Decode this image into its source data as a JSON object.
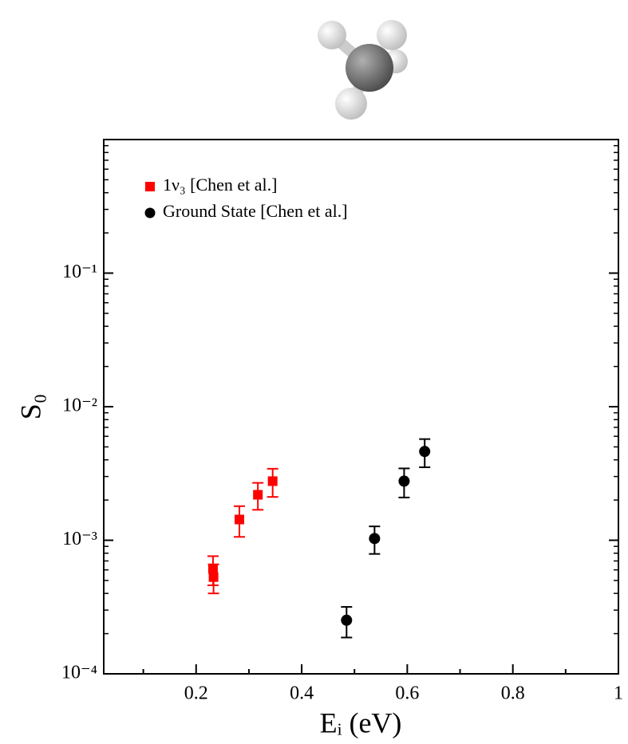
{
  "chart_data": {
    "type": "scatter",
    "x_label": "Eᵢ (eV)",
    "y_label": "S₀",
    "xlim": [
      0.025,
      1
    ],
    "xticks": [
      0.2,
      0.4,
      0.6,
      0.8,
      1
    ],
    "ylim": [
      0.0001,
      1
    ],
    "yticks": [
      {
        "value": 0.0001,
        "label": "10⁻⁴"
      },
      {
        "value": 0.001,
        "label": "10⁻³"
      },
      {
        "value": 0.01,
        "label": "10⁻²"
      },
      {
        "value": 0.1,
        "label": "10⁻¹"
      }
    ],
    "log_y": true,
    "legend_position": "upper left",
    "series": [
      {
        "name": "1ν₃ [Chen et al.]",
        "color": "#ff0000",
        "marker": "square",
        "x": [
          0.232,
          0.233,
          0.282,
          0.317,
          0.345
        ],
        "values": [
          0.00061,
          0.00053,
          0.00143,
          0.00219,
          0.00277
        ],
        "errors": [
          0.00015,
          0.00013,
          0.00037,
          0.0005,
          0.00066
        ]
      },
      {
        "name": "Ground State [Chen et al.]",
        "color": "#000000",
        "marker": "circle",
        "x": [
          0.485,
          0.538,
          0.594,
          0.633
        ],
        "values": [
          0.000252,
          0.00103,
          0.00277,
          0.00462
        ],
        "errors": [
          6.5e-05,
          0.00024,
          0.00068,
          0.0011
        ]
      }
    ]
  }
}
